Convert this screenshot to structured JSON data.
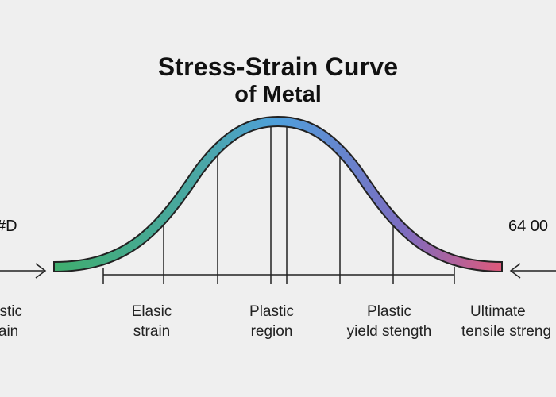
{
  "title": {
    "line1": "Stress-Strain Curve",
    "line2": "of Metal"
  },
  "side_text": {
    "left": "#D",
    "right": "64 00"
  },
  "labels": [
    {
      "line1": "Elastic",
      "line2": "strain"
    },
    {
      "line1": "Elasic",
      "line2": "strain"
    },
    {
      "line1": "Plastic",
      "line2": "region"
    },
    {
      "line1": "Plastic",
      "line2": "yield stength"
    },
    {
      "line1": "Ultimate",
      "line2": "tensile streng"
    }
  ],
  "colors": {
    "background": "#efefef",
    "curve_start": "#3fae6e",
    "curve_mid": "#4f9fdc",
    "curve_end": "#e0597a",
    "lines": "#222222"
  }
}
